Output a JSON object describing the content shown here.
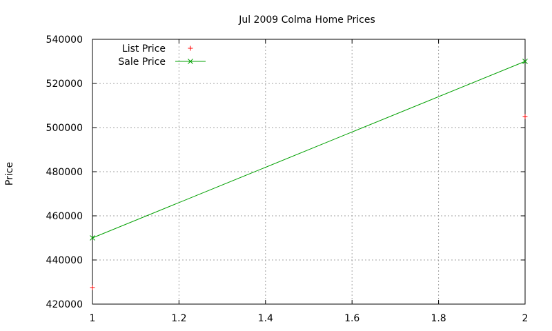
{
  "chart_data": {
    "type": "line",
    "title": "Jul 2009 Colma Home Prices",
    "xlabel": "",
    "ylabel": "Price",
    "xlim": [
      1,
      2
    ],
    "ylim": [
      420000,
      540000
    ],
    "x_ticks": [
      "1",
      "1.2",
      "1.4",
      "1.6",
      "1.8",
      "2"
    ],
    "y_ticks": [
      "420000",
      "440000",
      "460000",
      "480000",
      "500000",
      "520000",
      "540000"
    ],
    "grid": true,
    "legend_position": "top-left",
    "series": [
      {
        "name": "List Price",
        "style": "points",
        "marker": "+",
        "color": "#ff0000",
        "points": [
          {
            "x": 1,
            "y": 427500
          },
          {
            "x": 2,
            "y": 505000
          }
        ]
      },
      {
        "name": "Sale Price",
        "style": "linespoints",
        "marker": "x",
        "color": "#00a000",
        "points": [
          {
            "x": 1,
            "y": 450000
          },
          {
            "x": 2,
            "y": 530000
          }
        ]
      }
    ]
  }
}
